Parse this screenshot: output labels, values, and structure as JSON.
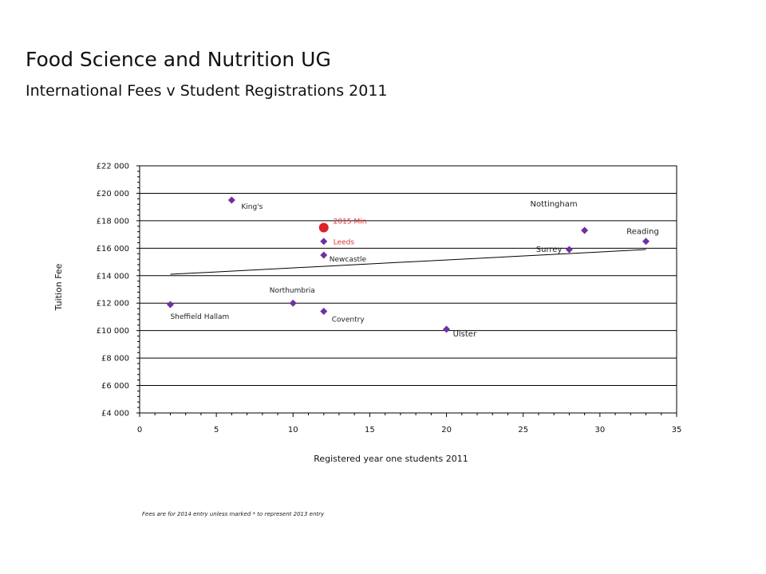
{
  "page": {
    "title": "Food Science and Nutrition UG",
    "subtitle": "International Fees v Student Registrations 2011",
    "footnote": "Fees are for 2014 entry unless marked * to represent 2013 entry"
  },
  "chart_data": {
    "type": "scatter",
    "xlabel": "Registered year one students 2011",
    "ylabel": "Tuition Fee",
    "xlim": [
      0,
      35
    ],
    "ylim": [
      4000,
      22000
    ],
    "x_ticks": [
      "0",
      "5",
      "10",
      "15",
      "20",
      "25",
      "30",
      "35"
    ],
    "y_ticks": [
      "£4 000",
      "£6 000",
      "£8 000",
      "£10 000",
      "£12 000",
      "£14 000",
      "£16 000",
      "£18 000",
      "£20 000",
      "£22 000"
    ],
    "grid": "horizontal",
    "points": [
      {
        "label": "King's",
        "x": 6,
        "y": 19500
      },
      {
        "label": "Leeds",
        "x": 12,
        "y": 16500
      },
      {
        "label": "Newcastle",
        "x": 12,
        "y": 15500
      },
      {
        "label": "Nottingham",
        "x": 29,
        "y": 17300
      },
      {
        "label": "Surrey",
        "x": 28,
        "y": 15900
      },
      {
        "label": "Reading",
        "x": 33,
        "y": 16500
      },
      {
        "label": "Northumbria",
        "x": 10,
        "y": 12000
      },
      {
        "label": "Sheffield Hallam",
        "x": 2,
        "y": 11900
      },
      {
        "label": "Coventry",
        "x": 12,
        "y": 11400
      },
      {
        "label": "Ulster",
        "x": 20,
        "y": 10100
      }
    ],
    "highlight": {
      "label": "2015 Min",
      "x": 12,
      "y": 17500
    },
    "trendline": {
      "x": [
        2,
        33
      ],
      "y": [
        14100,
        15900
      ]
    },
    "colors": {
      "point": "#7030a0",
      "highlight": "#e0202a",
      "highlight_label": "#e03030",
      "trendline": "#000000",
      "grid": "#000000"
    }
  }
}
